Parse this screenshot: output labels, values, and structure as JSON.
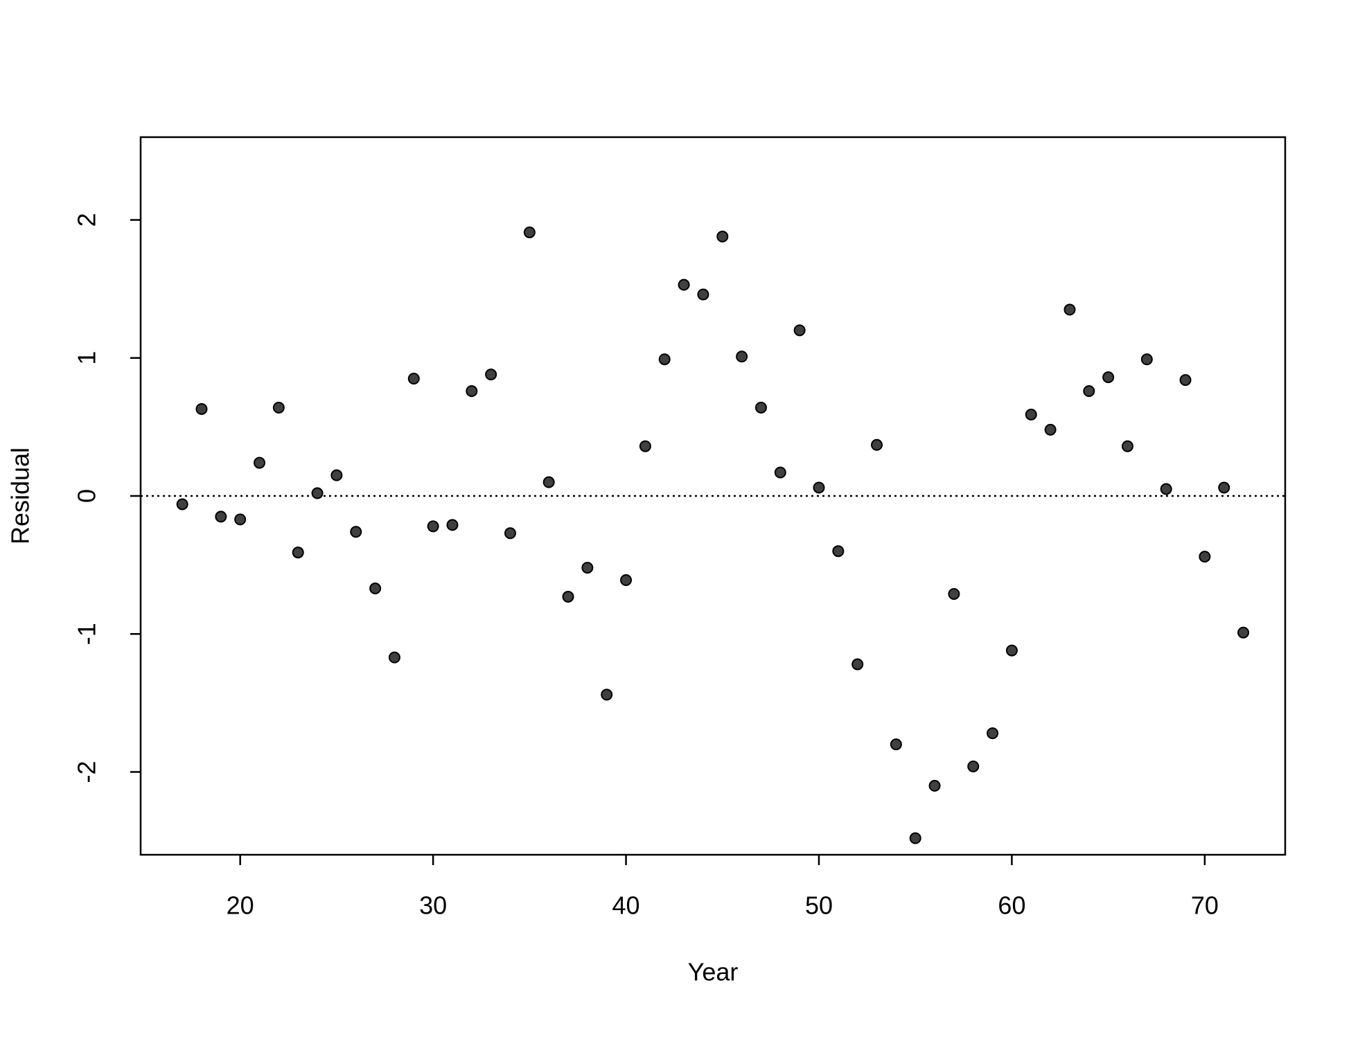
{
  "chart_data": {
    "type": "scatter",
    "x_label": "Year",
    "y_label": "Residual",
    "x": [
      17,
      18,
      19,
      20,
      21,
      22,
      23,
      24,
      25,
      26,
      27,
      28,
      29,
      30,
      31,
      32,
      33,
      34,
      35,
      36,
      37,
      38,
      39,
      40,
      41,
      42,
      43,
      44,
      45,
      46,
      47,
      48,
      49,
      50,
      51,
      52,
      53,
      54,
      55,
      56,
      57,
      58,
      59,
      60,
      61,
      62,
      63,
      64,
      65,
      66,
      67,
      68,
      69,
      70,
      71,
      72
    ],
    "values": [
      -0.06,
      0.63,
      -0.15,
      -0.17,
      0.24,
      0.64,
      -0.41,
      0.02,
      0.15,
      -0.26,
      -0.67,
      -1.17,
      0.85,
      -0.22,
      -0.21,
      0.76,
      0.88,
      -0.27,
      1.91,
      0.1,
      -0.73,
      -0.52,
      -1.44,
      -0.61,
      0.36,
      0.99,
      1.53,
      1.46,
      1.88,
      1.01,
      0.64,
      0.17,
      1.2,
      0.06,
      -0.4,
      -1.22,
      0.37,
      -1.8,
      -2.48,
      -2.1,
      -0.71,
      -1.96,
      -1.72,
      -1.12,
      0.59,
      0.48,
      1.35,
      0.76,
      0.86,
      0.36,
      0.99,
      0.05,
      0.84,
      -0.44,
      0.06,
      -0.99
    ],
    "color": "#404040",
    "hline": 0,
    "xlim": [
      14.84,
      74.17
    ],
    "ylim": [
      -2.6,
      2.6
    ],
    "xticks": [
      20,
      30,
      40,
      50,
      60,
      70
    ],
    "yticks": [
      -2,
      -1,
      0,
      1,
      2
    ],
    "grid": false
  }
}
